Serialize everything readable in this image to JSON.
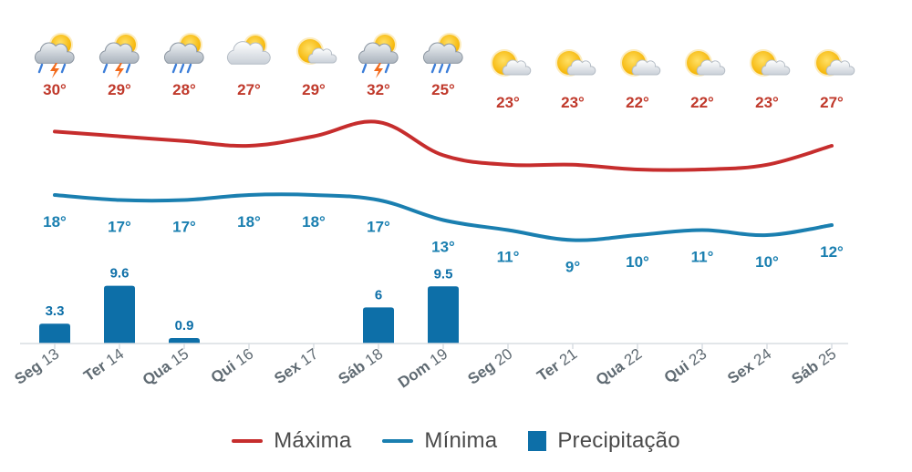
{
  "chart_data": {
    "type": "line",
    "categories": [
      "Seg 13",
      "Ter 14",
      "Qua 15",
      "Qui 16",
      "Sex 17",
      "Sáb 18",
      "Dom 19",
      "Seg 20",
      "Ter 21",
      "Qua 22",
      "Qui 23",
      "Sex 24",
      "Sáb 25"
    ],
    "days": [
      {
        "name": "Seg",
        "num": "13"
      },
      {
        "name": "Ter",
        "num": "14"
      },
      {
        "name": "Qua",
        "num": "15"
      },
      {
        "name": "Qui",
        "num": "16"
      },
      {
        "name": "Sex",
        "num": "17"
      },
      {
        "name": "Sáb",
        "num": "18"
      },
      {
        "name": "Dom",
        "num": "19"
      },
      {
        "name": "Seg",
        "num": "20"
      },
      {
        "name": "Ter",
        "num": "21"
      },
      {
        "name": "Qua",
        "num": "22"
      },
      {
        "name": "Qui",
        "num": "23"
      },
      {
        "name": "Sex",
        "num": "24"
      },
      {
        "name": "Sáb",
        "num": "25"
      }
    ],
    "weather_icons": [
      "storm-icon",
      "storm-icon",
      "rain-icon",
      "partly-cloudy-icon",
      "sunny-cloud-icon",
      "storm-icon",
      "rain-icon",
      "sunny-cloud-icon",
      "sunny-cloud-icon",
      "sunny-cloud-icon",
      "sunny-cloud-icon",
      "sunny-cloud-icon",
      "sunny-cloud-icon"
    ],
    "series": [
      {
        "name": "Máxima",
        "kind": "line",
        "color": "#c62d2d",
        "values": [
          30,
          29,
          28,
          27,
          29,
          32,
          25,
          23,
          23,
          22,
          22,
          23,
          27
        ],
        "labels": [
          "30°",
          "29°",
          "28°",
          "27°",
          "29°",
          "32°",
          "25°",
          "23°",
          "23°",
          "22°",
          "22°",
          "23°",
          "27°"
        ]
      },
      {
        "name": "Mínima",
        "kind": "line",
        "color": "#1a7fb0",
        "values": [
          18,
          17,
          17,
          18,
          18,
          17,
          13,
          11,
          9,
          10,
          11,
          10,
          12
        ],
        "labels": [
          "18°",
          "17°",
          "17°",
          "18°",
          "18°",
          "17°",
          "13°",
          "11°",
          "9°",
          "10°",
          "11°",
          "10°",
          "12°"
        ]
      },
      {
        "name": "Precipitação",
        "kind": "bar",
        "color": "#0d6fa8",
        "values": [
          3.3,
          9.6,
          0.9,
          null,
          null,
          6,
          9.5,
          null,
          null,
          null,
          null,
          null,
          null
        ],
        "labels": [
          "3.3",
          "9.6",
          "0.9",
          "",
          "",
          "6",
          "9.5",
          "",
          "",
          "",
          "",
          "",
          ""
        ]
      }
    ],
    "legend_position": "bottom",
    "grid": false
  }
}
